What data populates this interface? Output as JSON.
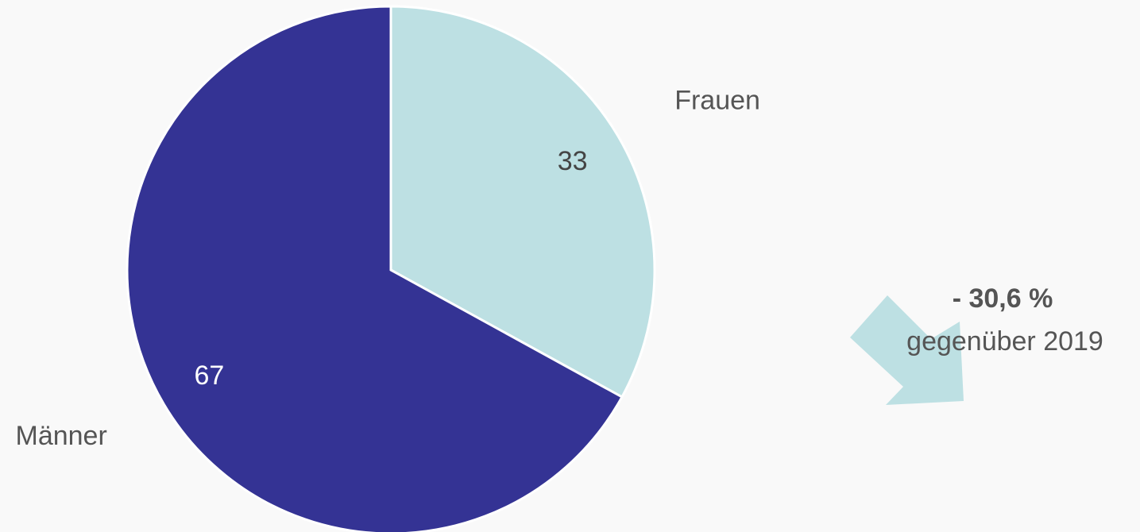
{
  "chart_data": {
    "type": "pie",
    "categories": [
      "Frauen",
      "Männer"
    ],
    "values": [
      33,
      67
    ],
    "colors": [
      "#bde0e3",
      "#343394"
    ],
    "label_colors": [
      "#444444",
      "#ffffff"
    ],
    "annotations": [
      "- 30,6 %",
      "gegenüber 2019"
    ]
  }
}
